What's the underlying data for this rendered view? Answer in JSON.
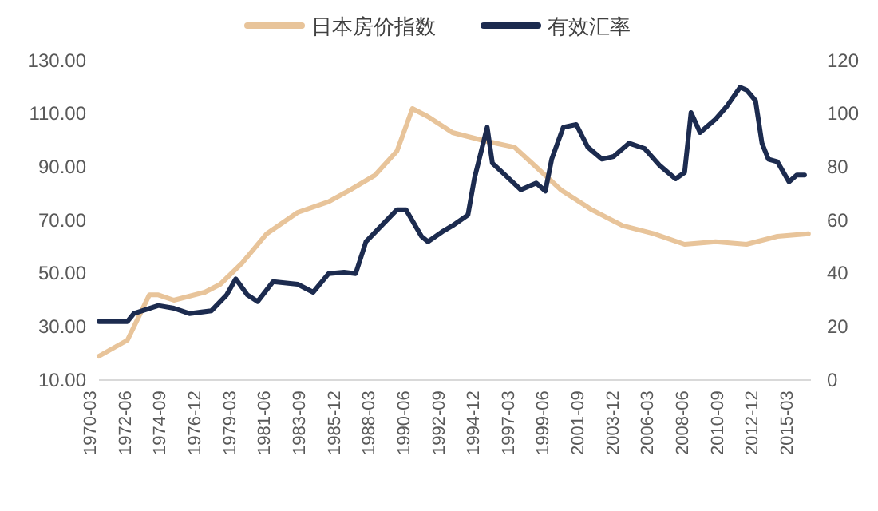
{
  "chart_data": {
    "type": "line",
    "legend": "top",
    "xlim": [
      "1970-03",
      "2016-03"
    ],
    "xticks": [
      "1970-03",
      "1972-06",
      "1974-09",
      "1976-12",
      "1979-03",
      "1981-06",
      "1983-09",
      "1985-12",
      "1988-03",
      "1990-06",
      "1992-09",
      "1994-12",
      "1997-03",
      "1999-06",
      "2001-09",
      "2003-12",
      "2006-03",
      "2008-06",
      "2010-09",
      "2012-12",
      "2015-03"
    ],
    "ylim": [
      10,
      130
    ],
    "yticks": [
      {
        "value": 10,
        "label": "10.00"
      },
      {
        "value": 30,
        "label": "30.00"
      },
      {
        "value": 50,
        "label": "50.00"
      },
      {
        "value": 70,
        "label": "70.00"
      },
      {
        "value": 90,
        "label": "90.00"
      },
      {
        "value": 110,
        "label": "110.00"
      },
      {
        "value": 130,
        "label": "130.00"
      }
    ],
    "y2lim": [
      0,
      120
    ],
    "y2ticks": [
      0,
      20,
      40,
      60,
      80,
      100,
      120
    ],
    "series": [
      {
        "name": "日本房价指数",
        "color": "#e8c49a",
        "x": [
          "1970-03",
          "1972-01",
          "1973-06",
          "1974-01",
          "1975-01",
          "1977-01",
          "1978-01",
          "1979-06",
          "1981-01",
          "1983-01",
          "1985-01",
          "1986-06",
          "1988-01",
          "1989-06",
          "1990-06",
          "1991-06",
          "1993-01",
          "1995-01",
          "1997-01",
          "1998-06",
          "2000-01",
          "2002-01",
          "2004-01",
          "2006-01",
          "2008-01",
          "2010-01",
          "2012-01",
          "2014-01",
          "2016-01"
        ],
        "values": [
          19,
          25,
          42,
          42,
          40,
          43,
          46,
          54,
          65,
          73,
          77,
          81.5,
          87,
          96,
          112,
          109,
          103,
          100,
          97.5,
          90,
          81.5,
          74,
          68,
          65,
          61,
          62,
          61,
          64,
          65
        ]
      },
      {
        "name": "有效汇率",
        "color": "#1c2b4f",
        "axis": "y2",
        "x": [
          "1970-03",
          "1972-01",
          "1972-06",
          "1974-01",
          "1975-01",
          "1976-01",
          "1977-06",
          "1978-06",
          "1979-01",
          "1979-10",
          "1980-06",
          "1981-06",
          "1983-01",
          "1984-01",
          "1985-01",
          "1986-01",
          "1986-10",
          "1987-06",
          "1988-06",
          "1989-06",
          "1990-01",
          "1991-01",
          "1991-06",
          "1992-06",
          "1993-01",
          "1994-01",
          "1994-06",
          "1995-04",
          "1995-08",
          "1996-06",
          "1997-06",
          "1998-06",
          "1999-01",
          "1999-06",
          "2000-03",
          "2001-01",
          "2001-10",
          "2002-09",
          "2003-06",
          "2004-06",
          "2005-06",
          "2006-06",
          "2007-06",
          "2008-01",
          "2008-06",
          "2009-01",
          "2010-01",
          "2010-10",
          "2011-08",
          "2012-01",
          "2012-08",
          "2013-01",
          "2013-06",
          "2014-01",
          "2014-10",
          "2015-04",
          "2015-10"
        ],
        "values": [
          22,
          22,
          25,
          28,
          27,
          25,
          26,
          32,
          38,
          32,
          29.5,
          37,
          36,
          33,
          40,
          40.5,
          40,
          52,
          58,
          64,
          64,
          54,
          52,
          56,
          58,
          62,
          75.6,
          95,
          81.5,
          77,
          71.5,
          74,
          71,
          83,
          95,
          96,
          87.5,
          83,
          84,
          89,
          87,
          80.5,
          75.6,
          78,
          100.5,
          93,
          98,
          103,
          110,
          109,
          105,
          89,
          83,
          82,
          74.5,
          77,
          77
        ]
      }
    ]
  }
}
